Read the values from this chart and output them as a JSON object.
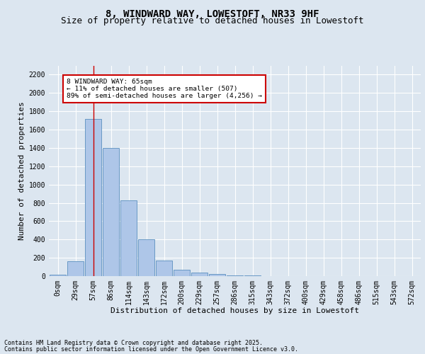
{
  "title_line1": "8, WINDWARD WAY, LOWESTOFT, NR33 9HF",
  "title_line2": "Size of property relative to detached houses in Lowestoft",
  "xlabel": "Distribution of detached houses by size in Lowestoft",
  "ylabel": "Number of detached properties",
  "bar_labels": [
    "0sqm",
    "29sqm",
    "57sqm",
    "86sqm",
    "114sqm",
    "143sqm",
    "172sqm",
    "200sqm",
    "229sqm",
    "257sqm",
    "286sqm",
    "315sqm",
    "343sqm",
    "372sqm",
    "400sqm",
    "429sqm",
    "458sqm",
    "486sqm",
    "515sqm",
    "543sqm",
    "572sqm"
  ],
  "bar_values": [
    15,
    160,
    1720,
    1400,
    830,
    400,
    170,
    70,
    35,
    25,
    10,
    5,
    2,
    1,
    0,
    0,
    0,
    0,
    0,
    0,
    0
  ],
  "bar_color": "#aec6e8",
  "bar_edge_color": "#5a8fbf",
  "ylim": [
    0,
    2300
  ],
  "yticks": [
    0,
    200,
    400,
    600,
    800,
    1000,
    1200,
    1400,
    1600,
    1800,
    2000,
    2200
  ],
  "vline_x": 2,
  "vline_color": "#cc0000",
  "annotation_box_text": "8 WINDWARD WAY: 65sqm\n← 11% of detached houses are smaller (507)\n89% of semi-detached houses are larger (4,256) →",
  "annotation_box_color": "#cc0000",
  "footer_line1": "Contains HM Land Registry data © Crown copyright and database right 2025.",
  "footer_line2": "Contains public sector information licensed under the Open Government Licence v3.0.",
  "fig_bg_color": "#dce6f0",
  "plot_bg_color": "#dce6f0",
  "title_fontsize": 10,
  "subtitle_fontsize": 9,
  "axis_label_fontsize": 8,
  "tick_fontsize": 7,
  "footer_fontsize": 6
}
